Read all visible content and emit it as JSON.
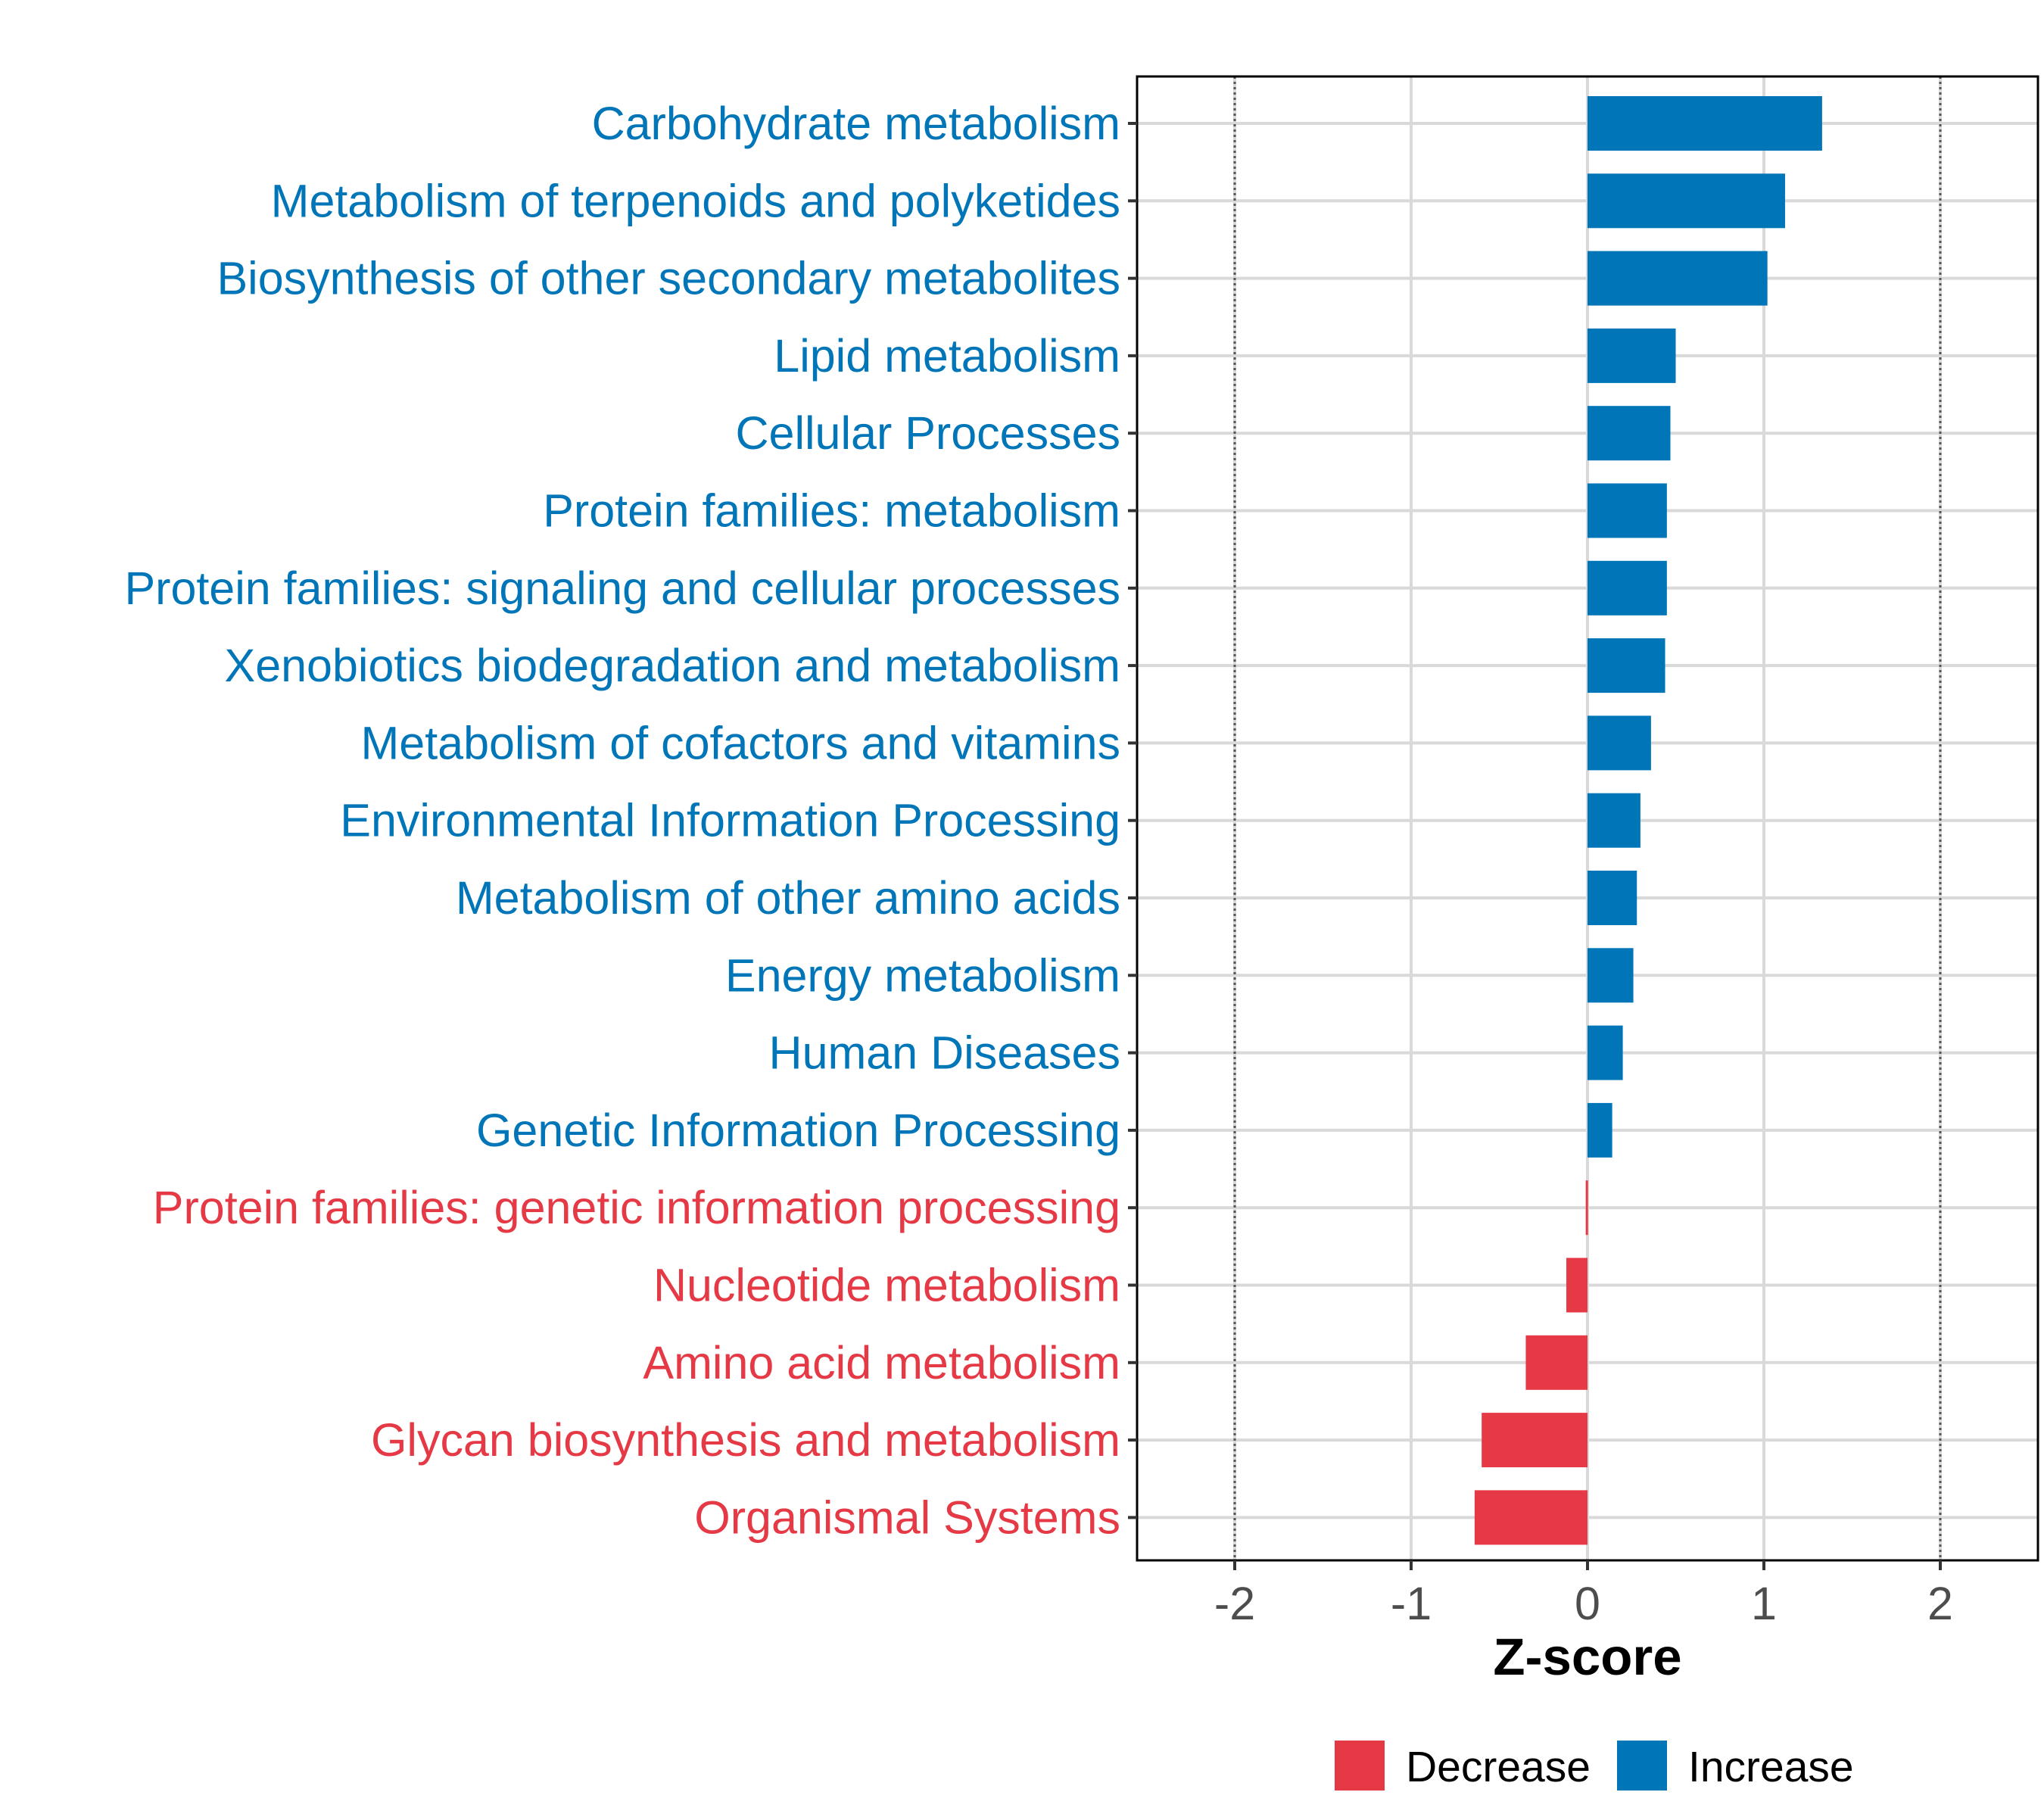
{
  "colors": {
    "increase": "#0076B8",
    "decrease": "#E63946",
    "grid": "#D9D9D9",
    "panel_border": "#000000",
    "reference_line": "#555555",
    "tick_text": "#4D4D4D"
  },
  "chart_data": {
    "type": "bar",
    "orientation": "horizontal",
    "title": "",
    "xlabel": "Z-score",
    "ylabel": "",
    "xlim": [
      -2.55,
      2.55
    ],
    "xticks": [
      -2,
      -1,
      0,
      1,
      2
    ],
    "xtick_labels": [
      "-2",
      "-1",
      "0",
      "1",
      "2"
    ],
    "reference_lines": [
      -2,
      2
    ],
    "grid": true,
    "legend": {
      "position": "bottom",
      "entries": [
        {
          "key": "decrease",
          "label": "Decrease"
        },
        {
          "key": "increase",
          "label": "Increase"
        }
      ]
    },
    "categories": [
      "Carbohydrate metabolism",
      "Metabolism of terpenoids and polyketides",
      "Biosynthesis of other secondary metabolites",
      "Lipid metabolism",
      "Cellular Processes",
      "Protein families: metabolism",
      "Protein families: signaling and cellular processes",
      "Xenobiotics biodegradation and metabolism",
      "Metabolism of cofactors and vitamins",
      "Environmental Information Processing",
      "Metabolism of other amino acids",
      "Energy metabolism",
      "Human Diseases",
      "Genetic Information Processing",
      "Protein families: genetic information processing",
      "Nucleotide metabolism",
      "Amino acid metabolism",
      "Glycan biosynthesis and metabolism",
      "Organismal Systems"
    ],
    "values": [
      1.33,
      1.12,
      1.02,
      0.5,
      0.47,
      0.45,
      0.45,
      0.44,
      0.36,
      0.3,
      0.28,
      0.26,
      0.2,
      0.14,
      -0.01,
      -0.12,
      -0.35,
      -0.6,
      -0.64
    ],
    "groups": [
      "increase",
      "increase",
      "increase",
      "increase",
      "increase",
      "increase",
      "increase",
      "increase",
      "increase",
      "increase",
      "increase",
      "increase",
      "increase",
      "increase",
      "decrease",
      "decrease",
      "decrease",
      "decrease",
      "decrease"
    ]
  }
}
